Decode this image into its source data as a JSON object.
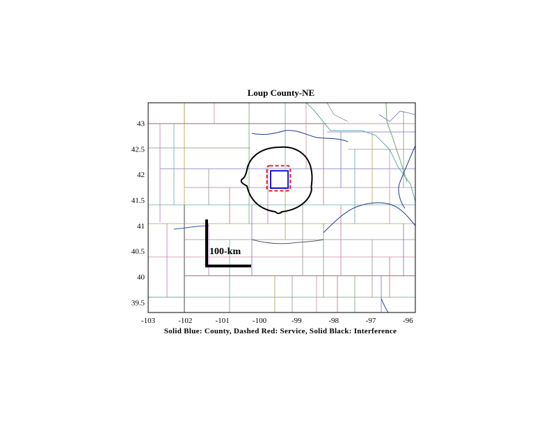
{
  "chart_data": {
    "type": "map",
    "title": "Loup County-NE",
    "caption": "Solid Blue: County, Dashed Red: Service, Solid Black: Interference",
    "scale_label": "100-km",
    "xlim": [
      -103,
      -95.8
    ],
    "ylim": [
      39.3,
      43.4
    ],
    "x_ticks": [
      -103,
      -102,
      -101,
      -100,
      -99,
      -98,
      -97,
      -96
    ],
    "y_ticks": [
      39.5,
      40,
      40.5,
      41,
      41.5,
      42,
      42.5,
      43
    ],
    "county_box": {
      "lon": [
        -99.7,
        -99.23
      ],
      "lat": [
        41.73,
        42.07
      ]
    },
    "service_box": {
      "lon": [
        -99.8,
        -99.17
      ],
      "lat": [
        41.68,
        42.17
      ]
    },
    "colors": {
      "county": "#1a1acc",
      "service": "#ee1c1c",
      "interference": "#000000"
    }
  }
}
